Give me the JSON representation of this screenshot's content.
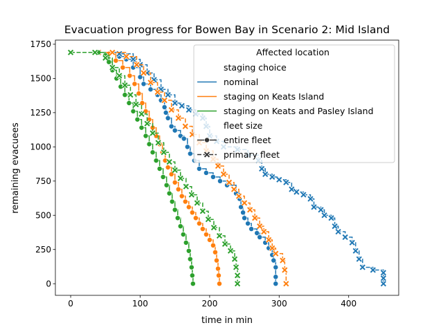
{
  "chart_data": {
    "type": "line",
    "title": "Evacuation progress for Bowen Bay in Scenario 2: Mid Island",
    "xlabel": "time in min",
    "ylabel": "remaining evacuees",
    "xlim": [
      -22,
      472
    ],
    "ylim": [
      -85,
      1780
    ],
    "xticks": [
      0,
      100,
      200,
      300,
      400
    ],
    "yticks": [
      0,
      250,
      500,
      750,
      1000,
      1250,
      1500,
      1750
    ],
    "grid": false,
    "legend": {
      "title": "Affected location",
      "placement": "top-right",
      "hue_header": "staging choice",
      "style_header": "fleet size",
      "hue_items": [
        {
          "label": "nominal",
          "color": "#1f77b4"
        },
        {
          "label": "staging on Keats Island",
          "color": "#ff7f0e"
        },
        {
          "label": "staging on Keats and Pasley Island",
          "color": "#2ca02c"
        }
      ],
      "style_items": [
        {
          "label": "entire fleet",
          "marker": "circle",
          "dash": "solid"
        },
        {
          "label": "primary fleet",
          "marker": "x",
          "dash": "dashed"
        }
      ]
    },
    "series": [
      {
        "staging": "nominal",
        "fleet": "entire fleet",
        "color": "#1f77b4",
        "marker": "circle",
        "dash": "solid",
        "points": [
          [
            40,
            1690
          ],
          [
            70,
            1660
          ],
          [
            80,
            1640
          ],
          [
            90,
            1580
          ],
          [
            100,
            1510
          ],
          [
            105,
            1460
          ],
          [
            115,
            1420
          ],
          [
            125,
            1380
          ],
          [
            130,
            1340
          ],
          [
            135,
            1290
          ],
          [
            137,
            1250
          ],
          [
            140,
            1210
          ],
          [
            145,
            1150
          ],
          [
            150,
            1120
          ],
          [
            158,
            1080
          ],
          [
            163,
            1060
          ],
          [
            168,
            1000
          ],
          [
            172,
            950
          ],
          [
            178,
            900
          ],
          [
            185,
            840
          ],
          [
            195,
            810
          ],
          [
            205,
            780
          ],
          [
            215,
            750
          ],
          [
            225,
            720
          ],
          [
            238,
            660
          ],
          [
            243,
            620
          ],
          [
            245,
            560
          ],
          [
            248,
            520
          ],
          [
            250,
            480
          ],
          [
            255,
            440
          ],
          [
            260,
            400
          ],
          [
            268,
            370
          ],
          [
            272,
            340
          ],
          [
            280,
            300
          ],
          [
            285,
            260
          ],
          [
            290,
            210
          ],
          [
            292,
            170
          ],
          [
            295,
            120
          ],
          [
            295,
            50
          ],
          [
            295,
            0
          ]
        ]
      },
      {
        "staging": "nominal",
        "fleet": "primary fleet",
        "color": "#1f77b4",
        "marker": "x",
        "dash": "dashed",
        "points": [
          [
            40,
            1690
          ],
          [
            70,
            1680
          ],
          [
            90,
            1640
          ],
          [
            100,
            1600
          ],
          [
            110,
            1540
          ],
          [
            120,
            1490
          ],
          [
            130,
            1420
          ],
          [
            140,
            1380
          ],
          [
            150,
            1320
          ],
          [
            160,
            1300
          ],
          [
            170,
            1270
          ],
          [
            180,
            1240
          ],
          [
            190,
            1210
          ],
          [
            195,
            1150
          ],
          [
            200,
            1080
          ],
          [
            210,
            1040
          ],
          [
            220,
            1000
          ],
          [
            240,
            980
          ],
          [
            255,
            940
          ],
          [
            270,
            900
          ],
          [
            275,
            840
          ],
          [
            280,
            800
          ],
          [
            290,
            780
          ],
          [
            300,
            760
          ],
          [
            310,
            740
          ],
          [
            318,
            690
          ],
          [
            325,
            670
          ],
          [
            335,
            650
          ],
          [
            345,
            620
          ],
          [
            350,
            560
          ],
          [
            360,
            540
          ],
          [
            365,
            500
          ],
          [
            375,
            480
          ],
          [
            380,
            420
          ],
          [
            385,
            380
          ],
          [
            395,
            340
          ],
          [
            405,
            300
          ],
          [
            410,
            240
          ],
          [
            415,
            180
          ],
          [
            420,
            120
          ],
          [
            435,
            100
          ],
          [
            450,
            80
          ],
          [
            450,
            40
          ],
          [
            450,
            0
          ]
        ]
      },
      {
        "staging": "staging on Keats Island",
        "fleet": "entire fleet",
        "color": "#ff7f0e",
        "marker": "circle",
        "dash": "solid",
        "points": [
          [
            40,
            1690
          ],
          [
            55,
            1680
          ],
          [
            65,
            1630
          ],
          [
            75,
            1580
          ],
          [
            85,
            1520
          ],
          [
            92,
            1460
          ],
          [
            98,
            1390
          ],
          [
            103,
            1320
          ],
          [
            108,
            1260
          ],
          [
            113,
            1200
          ],
          [
            118,
            1140
          ],
          [
            123,
            1080
          ],
          [
            128,
            1020
          ],
          [
            132,
            960
          ],
          [
            136,
            900
          ],
          [
            140,
            850
          ],
          [
            145,
            800
          ],
          [
            150,
            740
          ],
          [
            155,
            690
          ],
          [
            160,
            640
          ],
          [
            165,
            600
          ],
          [
            170,
            560
          ],
          [
            175,
            520
          ],
          [
            180,
            480
          ],
          [
            185,
            440
          ],
          [
            190,
            400
          ],
          [
            195,
            360
          ],
          [
            200,
            320
          ],
          [
            205,
            280
          ],
          [
            208,
            230
          ],
          [
            210,
            170
          ],
          [
            212,
            110
          ],
          [
            213,
            60
          ],
          [
            214,
            0
          ]
        ]
      },
      {
        "staging": "staging on Keats Island",
        "fleet": "primary fleet",
        "color": "#ff7f0e",
        "marker": "x",
        "dash": "dashed",
        "points": [
          [
            40,
            1690
          ],
          [
            60,
            1690
          ],
          [
            80,
            1660
          ],
          [
            95,
            1600
          ],
          [
            105,
            1540
          ],
          [
            115,
            1470
          ],
          [
            125,
            1400
          ],
          [
            135,
            1340
          ],
          [
            145,
            1270
          ],
          [
            155,
            1210
          ],
          [
            165,
            1150
          ],
          [
            175,
            1090
          ],
          [
            185,
            1030
          ],
          [
            195,
            970
          ],
          [
            205,
            910
          ],
          [
            212,
            860
          ],
          [
            220,
            800
          ],
          [
            228,
            740
          ],
          [
            235,
            690
          ],
          [
            242,
            640
          ],
          [
            250,
            590
          ],
          [
            258,
            540
          ],
          [
            265,
            480
          ],
          [
            272,
            420
          ],
          [
            278,
            380
          ],
          [
            285,
            320
          ],
          [
            290,
            260
          ],
          [
            295,
            220
          ],
          [
            305,
            170
          ],
          [
            308,
            100
          ],
          [
            310,
            0
          ]
        ]
      },
      {
        "staging": "staging on Keats and Pasley Island",
        "fleet": "entire fleet",
        "color": "#2ca02c",
        "marker": "circle",
        "dash": "solid",
        "points": [
          [
            40,
            1690
          ],
          [
            50,
            1670
          ],
          [
            55,
            1620
          ],
          [
            60,
            1560
          ],
          [
            66,
            1500
          ],
          [
            72,
            1440
          ],
          [
            78,
            1380
          ],
          [
            84,
            1320
          ],
          [
            90,
            1260
          ],
          [
            96,
            1200
          ],
          [
            102,
            1140
          ],
          [
            108,
            1080
          ],
          [
            113,
            1020
          ],
          [
            118,
            960
          ],
          [
            123,
            900
          ],
          [
            128,
            840
          ],
          [
            133,
            780
          ],
          [
            138,
            720
          ],
          [
            142,
            660
          ],
          [
            146,
            600
          ],
          [
            150,
            540
          ],
          [
            154,
            480
          ],
          [
            158,
            420
          ],
          [
            162,
            360
          ],
          [
            166,
            300
          ],
          [
            170,
            240
          ],
          [
            172,
            180
          ],
          [
            174,
            120
          ],
          [
            175,
            60
          ],
          [
            176,
            0
          ]
        ]
      },
      {
        "staging": "staging on Keats and Pasley Island",
        "fleet": "primary fleet",
        "color": "#2ca02c",
        "marker": "x",
        "dash": "dashed",
        "points": [
          [
            0,
            1690
          ],
          [
            35,
            1690
          ],
          [
            50,
            1650
          ],
          [
            60,
            1580
          ],
          [
            70,
            1520
          ],
          [
            78,
            1450
          ],
          [
            86,
            1380
          ],
          [
            94,
            1310
          ],
          [
            102,
            1240
          ],
          [
            110,
            1170
          ],
          [
            118,
            1100
          ],
          [
            126,
            1030
          ],
          [
            134,
            960
          ],
          [
            142,
            890
          ],
          [
            150,
            830
          ],
          [
            158,
            770
          ],
          [
            166,
            710
          ],
          [
            174,
            650
          ],
          [
            182,
            590
          ],
          [
            190,
            530
          ],
          [
            198,
            470
          ],
          [
            206,
            410
          ],
          [
            214,
            350
          ],
          [
            222,
            290
          ],
          [
            230,
            240
          ],
          [
            236,
            180
          ],
          [
            238,
            120
          ],
          [
            240,
            60
          ],
          [
            240,
            0
          ]
        ]
      }
    ]
  }
}
